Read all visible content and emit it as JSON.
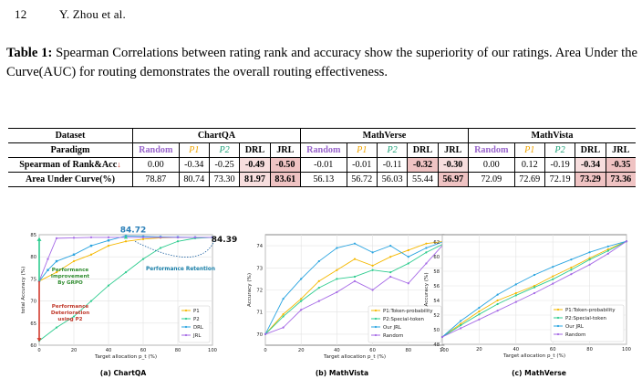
{
  "header": {
    "page_number": "12",
    "authors": "Y. Zhou et al."
  },
  "caption": {
    "label": "Table 1:",
    "text": "Spearman Correlations between rating rank and accuracy show the superiority of our ratings. Area Under the Curve(AUC) for routing demonstrates the overall routing effectiveness."
  },
  "table": {
    "dataset_label": "Dataset",
    "paradigm_label": "Paradigm",
    "datasets": [
      "ChartQA",
      "MathVerse",
      "MathVista"
    ],
    "paradigms": [
      "Random",
      "P1",
      "P2",
      "DRL",
      "JRL"
    ],
    "rows": [
      {
        "label": "Spearman of Rank&Acc",
        "arrow": "↓",
        "values": [
          "0.00",
          "-0.34",
          "-0.25",
          "-0.49",
          "-0.50",
          "-0.01",
          "-0.01",
          "-0.11",
          "-0.32",
          "-0.30",
          "0.00",
          "0.12",
          "-0.19",
          "-0.34",
          "-0.35"
        ]
      },
      {
        "label": "Area Under Curve(%)",
        "values": [
          "78.87",
          "80.74",
          "73.30",
          "81.97",
          "83.61",
          "56.13",
          "56.72",
          "56.03",
          "55.44",
          "56.97",
          "72.09",
          "72.69",
          "72.19",
          "73.29",
          "73.36"
        ]
      }
    ]
  },
  "colors": {
    "P1": "#f5b800",
    "P2": "#2ecc8f",
    "DRL": "#2aa4e0",
    "JRL": "#a569e6",
    "Random": "#a569e6",
    "Our JRL": "#2aa4e0"
  },
  "chart_data": [
    {
      "type": "line",
      "subcaption": "(a) ChartQA",
      "xlabel": "Target allocation p_t (%)",
      "ylabel": "total Accuracy (%)",
      "xlim": [
        0,
        100
      ],
      "ylim": [
        60,
        85
      ],
      "xticks": [
        "0",
        "20",
        "40",
        "60",
        "80",
        "100"
      ],
      "yticks": [
        "60",
        "65",
        "70",
        "75",
        "80",
        "85"
      ],
      "grid": true,
      "legend": "bottom-right",
      "series": [
        {
          "name": "P1",
          "x": [
            0,
            10,
            20,
            30,
            40,
            50,
            60,
            70,
            80,
            90,
            100
          ],
          "y": [
            74.5,
            76.5,
            79,
            80.5,
            82.5,
            83.5,
            84,
            84.3,
            84.4,
            84.4,
            84.4
          ]
        },
        {
          "name": "P2",
          "x": [
            0,
            10,
            20,
            30,
            40,
            50,
            60,
            70,
            80,
            90,
            100
          ],
          "y": [
            61,
            64,
            66.5,
            70,
            73.5,
            76.5,
            79.5,
            82,
            83.5,
            84.2,
            84.4
          ]
        },
        {
          "name": "DRL",
          "x": [
            0,
            5,
            10,
            20,
            30,
            40,
            50,
            60,
            70,
            80,
            90,
            100
          ],
          "y": [
            74.5,
            77,
            79,
            80.5,
            82.5,
            83.7,
            84.72,
            84.6,
            84.5,
            84.45,
            84.4,
            84.39
          ]
        },
        {
          "name": "JRL",
          "x": [
            0,
            5,
            10,
            20,
            30,
            40,
            50,
            60,
            70,
            80,
            90,
            100
          ],
          "y": [
            74.5,
            79.5,
            84.2,
            84.3,
            84.4,
            84.4,
            84.4,
            84.4,
            84.4,
            84.4,
            84.4,
            84.4
          ]
        }
      ],
      "annotations": {
        "peak": "84.72",
        "end": "84.39",
        "retention": "Performance Retention",
        "improvement": "Performance Improvement By GRPO",
        "deterioration": "Performance Deterioration using P2"
      }
    },
    {
      "type": "line",
      "subcaption": "(b) MathVista",
      "xlabel": "Target allocation p_t (%)",
      "ylabel": "Accuracy (%)",
      "xlim": [
        0,
        100
      ],
      "ylim": [
        69.5,
        74.5
      ],
      "xticks": [
        "0",
        "20",
        "40",
        "60",
        "80",
        "100"
      ],
      "yticks": [
        "70",
        "71",
        "72",
        "73",
        "74"
      ],
      "grid": true,
      "legend": "bottom-right",
      "series": [
        {
          "name": "P1:Token-probability",
          "x": [
            0,
            10,
            20,
            30,
            40,
            50,
            60,
            70,
            80,
            90,
            100
          ],
          "y": [
            70,
            70.9,
            71.6,
            72.4,
            72.9,
            73.4,
            73.1,
            73.5,
            73.8,
            74.1,
            74.2
          ]
        },
        {
          "name": "P2:Special-token",
          "x": [
            0,
            10,
            20,
            30,
            40,
            50,
            60,
            70,
            80,
            90,
            100
          ],
          "y": [
            70,
            70.8,
            71.5,
            72.1,
            72.5,
            72.6,
            72.9,
            72.8,
            73.2,
            73.7,
            74.1
          ]
        },
        {
          "name": "Our JRL",
          "x": [
            0,
            10,
            20,
            30,
            40,
            50,
            60,
            70,
            80,
            90,
            100
          ],
          "y": [
            70,
            71.6,
            72.5,
            73.3,
            73.9,
            74.1,
            73.7,
            74.0,
            73.5,
            73.9,
            74.2
          ]
        },
        {
          "name": "Random",
          "x": [
            0,
            10,
            20,
            30,
            40,
            50,
            60,
            70,
            80,
            90,
            100
          ],
          "y": [
            70,
            70.3,
            71.1,
            71.5,
            71.9,
            72.4,
            72.0,
            72.6,
            72.3,
            73.2,
            74.1
          ]
        }
      ]
    },
    {
      "type": "line",
      "subcaption": "(c) MathVerse",
      "xlabel": "Target allocation p_t (%)",
      "ylabel": "Accuracy (%)",
      "xlim": [
        0,
        100
      ],
      "ylim": [
        48,
        63
      ],
      "xticks": [
        "0",
        "20",
        "40",
        "60",
        "80",
        "100"
      ],
      "yticks": [
        "48",
        "50",
        "52",
        "54",
        "56",
        "58",
        "60",
        "62"
      ],
      "grid": true,
      "legend": "bottom-right",
      "series": [
        {
          "name": "P1:Token-probability",
          "x": [
            0,
            10,
            20,
            30,
            40,
            50,
            60,
            70,
            80,
            90,
            100
          ],
          "y": [
            49,
            50.8,
            52.5,
            54,
            55,
            56,
            57.3,
            58.5,
            59.8,
            61,
            62.1
          ]
        },
        {
          "name": "P2:Special-token",
          "x": [
            0,
            10,
            20,
            30,
            40,
            50,
            60,
            70,
            80,
            90,
            100
          ],
          "y": [
            49,
            50.6,
            52.1,
            53.5,
            54.7,
            55.8,
            56.9,
            58.2,
            59.6,
            60.8,
            62.1
          ]
        },
        {
          "name": "Our JRL",
          "x": [
            0,
            10,
            20,
            30,
            40,
            50,
            60,
            70,
            80,
            90,
            100
          ],
          "y": [
            49,
            51.2,
            53,
            54.8,
            56.2,
            57.5,
            58.6,
            59.6,
            60.6,
            61.4,
            62.1
          ]
        },
        {
          "name": "Random",
          "x": [
            0,
            10,
            20,
            30,
            40,
            50,
            60,
            70,
            80,
            90,
            100
          ],
          "y": [
            49,
            50.2,
            51.4,
            52.6,
            53.8,
            55,
            56.3,
            57.6,
            58.9,
            60.4,
            62.1
          ]
        }
      ]
    }
  ]
}
